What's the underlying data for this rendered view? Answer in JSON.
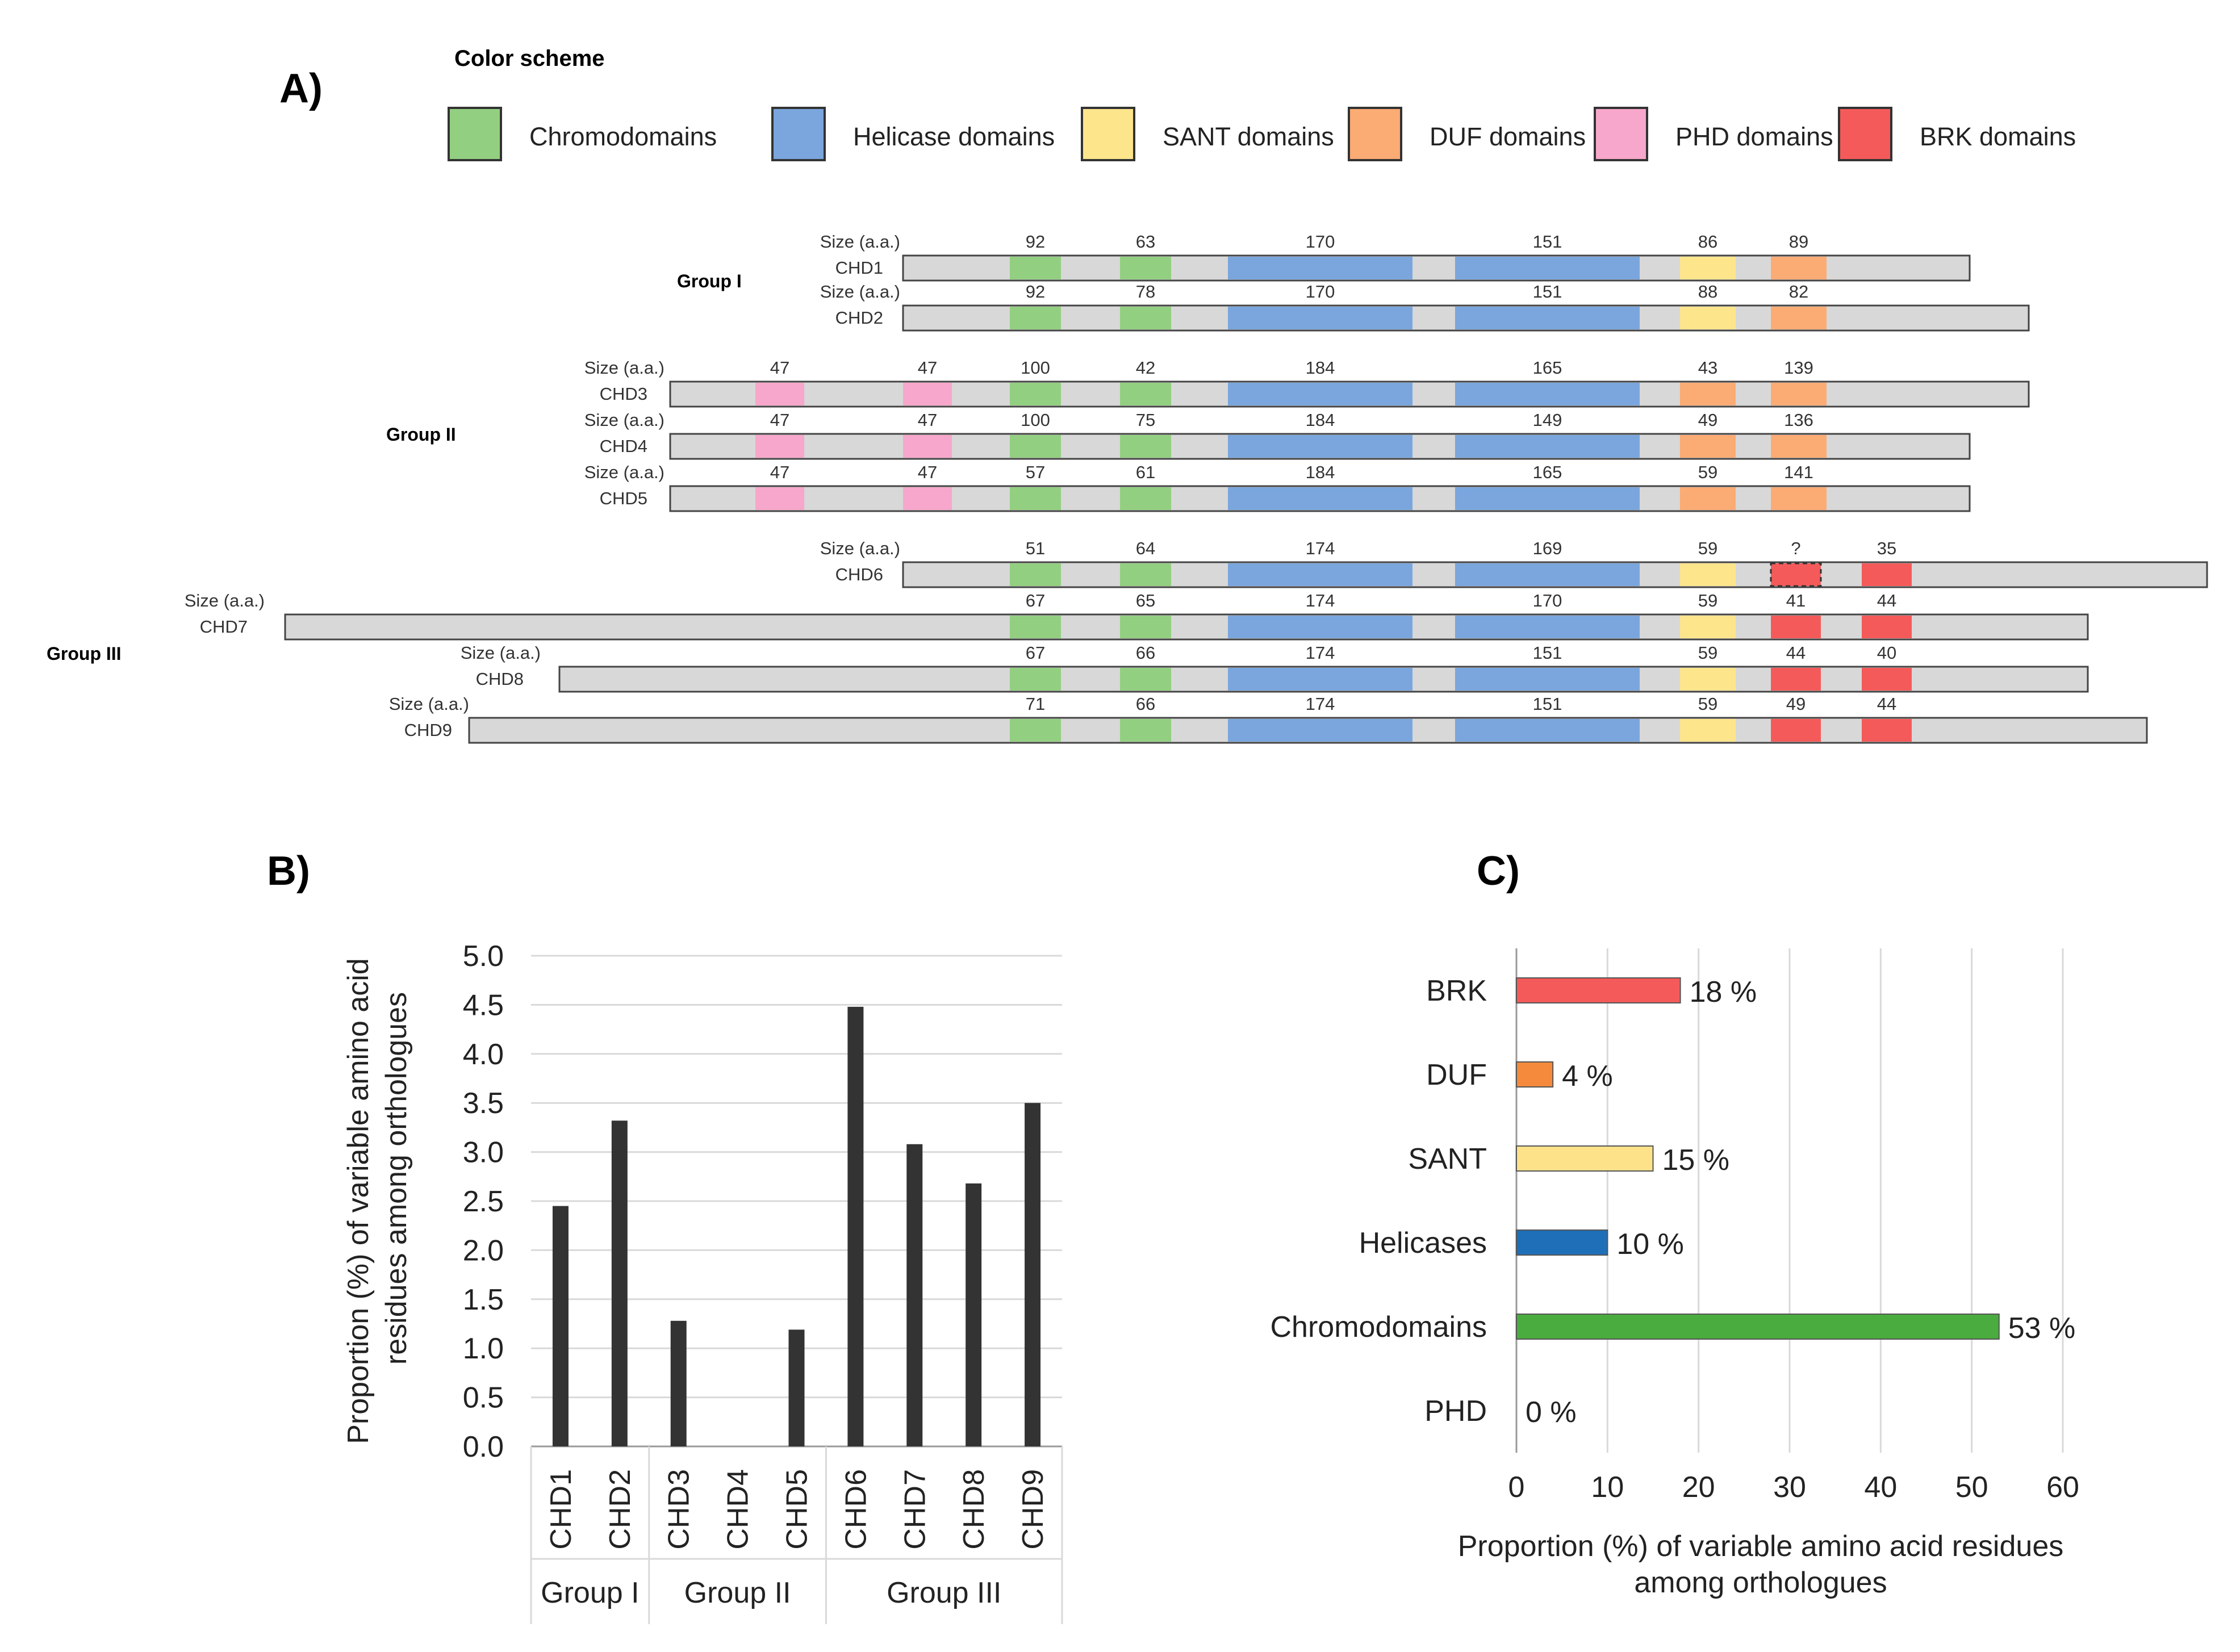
{
  "panels": {
    "a": "A)",
    "b": "B)",
    "c": "C)"
  },
  "color_scheme": {
    "title": "Color scheme",
    "items": [
      {
        "label": "Chromodomains",
        "color": "#93cf81"
      },
      {
        "label": "Helicase domains",
        "color": "#7aa6dd"
      },
      {
        "label": "SANT domains",
        "color": "#fde58c"
      },
      {
        "label": "DUF domains",
        "color": "#fbab74"
      },
      {
        "label": "PHD domains",
        "color": "#f7a7cb"
      },
      {
        "label": "BRK domains",
        "color": "#f55a5a"
      }
    ]
  },
  "size_label": "Size (a.a.)",
  "group_labels": {
    "g1": "Group I",
    "g2": "Group II",
    "g3": "Group III"
  },
  "proteins": [
    {
      "name": "CHD1",
      "group": "g1",
      "domains": [
        [
          "chromo",
          "92"
        ],
        [
          "chromo",
          "63"
        ],
        [
          "helicase",
          "170"
        ],
        [
          "helicase",
          "151"
        ],
        [
          "sant",
          "86"
        ],
        [
          "duf",
          "89"
        ]
      ]
    },
    {
      "name": "CHD2",
      "group": "g1",
      "domains": [
        [
          "chromo",
          "92"
        ],
        [
          "chromo",
          "78"
        ],
        [
          "helicase",
          "170"
        ],
        [
          "helicase",
          "151"
        ],
        [
          "sant",
          "88"
        ],
        [
          "duf",
          "82"
        ]
      ]
    },
    {
      "name": "CHD3",
      "group": "g2",
      "domains": [
        [
          "phd",
          "47"
        ],
        [
          "phd",
          "47"
        ],
        [
          "chromo",
          "100"
        ],
        [
          "chromo",
          "42"
        ],
        [
          "helicase",
          "184"
        ],
        [
          "helicase",
          "165"
        ],
        [
          "duf",
          "43"
        ],
        [
          "duf",
          "139"
        ]
      ]
    },
    {
      "name": "CHD4",
      "group": "g2",
      "domains": [
        [
          "phd",
          "47"
        ],
        [
          "phd",
          "47"
        ],
        [
          "chromo",
          "100"
        ],
        [
          "chromo",
          "75"
        ],
        [
          "helicase",
          "184"
        ],
        [
          "helicase",
          "149"
        ],
        [
          "duf",
          "49"
        ],
        [
          "duf",
          "136"
        ]
      ]
    },
    {
      "name": "CHD5",
      "group": "g2",
      "domains": [
        [
          "phd",
          "47"
        ],
        [
          "phd",
          "47"
        ],
        [
          "chromo",
          "57"
        ],
        [
          "chromo",
          "61"
        ],
        [
          "helicase",
          "184"
        ],
        [
          "helicase",
          "165"
        ],
        [
          "duf",
          "59"
        ],
        [
          "duf",
          "141"
        ]
      ]
    },
    {
      "name": "CHD6",
      "group": "g3",
      "domains": [
        [
          "chromo",
          "51"
        ],
        [
          "chromo",
          "64"
        ],
        [
          "helicase",
          "174"
        ],
        [
          "helicase",
          "169"
        ],
        [
          "sant",
          "59"
        ],
        [
          "brk",
          "?"
        ],
        [
          "brk",
          "35"
        ]
      ]
    },
    {
      "name": "CHD7",
      "group": "g3",
      "domains": [
        [
          "chromo",
          "67"
        ],
        [
          "chromo",
          "65"
        ],
        [
          "helicase",
          "174"
        ],
        [
          "helicase",
          "170"
        ],
        [
          "sant",
          "59"
        ],
        [
          "brk",
          "41"
        ],
        [
          "brk",
          "44"
        ]
      ]
    },
    {
      "name": "CHD8",
      "group": "g3",
      "domains": [
        [
          "chromo",
          "67"
        ],
        [
          "chromo",
          "66"
        ],
        [
          "helicase",
          "174"
        ],
        [
          "helicase",
          "151"
        ],
        [
          "sant",
          "59"
        ],
        [
          "brk",
          "44"
        ],
        [
          "brk",
          "40"
        ]
      ]
    },
    {
      "name": "CHD9",
      "group": "g3",
      "domains": [
        [
          "chromo",
          "71"
        ],
        [
          "chromo",
          "66"
        ],
        [
          "helicase",
          "174"
        ],
        [
          "helicase",
          "151"
        ],
        [
          "sant",
          "59"
        ],
        [
          "brk",
          "49"
        ],
        [
          "brk",
          "44"
        ]
      ]
    }
  ],
  "chart_data": [
    {
      "type": "bar",
      "panel": "B)",
      "categories": [
        "CHD1",
        "CHD2",
        "CHD3",
        "CHD4",
        "CHD5",
        "CHD6",
        "CHD7",
        "CHD8",
        "CHD9"
      ],
      "values": [
        2.45,
        3.32,
        1.28,
        0.0,
        1.19,
        4.48,
        3.08,
        2.68,
        3.5
      ],
      "groups": [
        {
          "name": "Group I",
          "members": [
            "CHD1",
            "CHD2"
          ]
        },
        {
          "name": "Group II",
          "members": [
            "CHD3",
            "CHD4",
            "CHD5"
          ]
        },
        {
          "name": "Group III",
          "members": [
            "CHD6",
            "CHD7",
            "CHD8",
            "CHD9"
          ]
        }
      ],
      "yticks": [
        "0.0",
        "0.5",
        "1.0",
        "1.5",
        "2.0",
        "2.5",
        "3.0",
        "3.5",
        "4.0",
        "4.5",
        "5.0"
      ],
      "ylim": [
        0,
        5
      ],
      "ylabel_line1": "Proportion (%) of variable amino acid",
      "ylabel_line2": "residues among orthologues",
      "bar_color": "#333333",
      "grid": true
    },
    {
      "type": "bar",
      "orientation": "horizontal",
      "panel": "C)",
      "categories": [
        "BRK",
        "DUF",
        "SANT",
        "Helicases",
        "Chromodomains",
        "PHD"
      ],
      "values": [
        18,
        4,
        15,
        10,
        53,
        0
      ],
      "value_labels": [
        "18 %",
        "4 %",
        "15 %",
        "10 %",
        "53 %",
        "0 %"
      ],
      "colors": [
        "#f55a5a",
        "#f58a3c",
        "#fde28a",
        "#1f6fb8",
        "#4aac3f",
        "#cccccc"
      ],
      "xticks": [
        "0",
        "10",
        "20",
        "30",
        "40",
        "50",
        "60"
      ],
      "xlim": [
        0,
        60
      ],
      "xlabel_line1": "Proportion (%) of variable amino acid residues",
      "xlabel_line2": "among orthologues",
      "grid": true
    }
  ]
}
